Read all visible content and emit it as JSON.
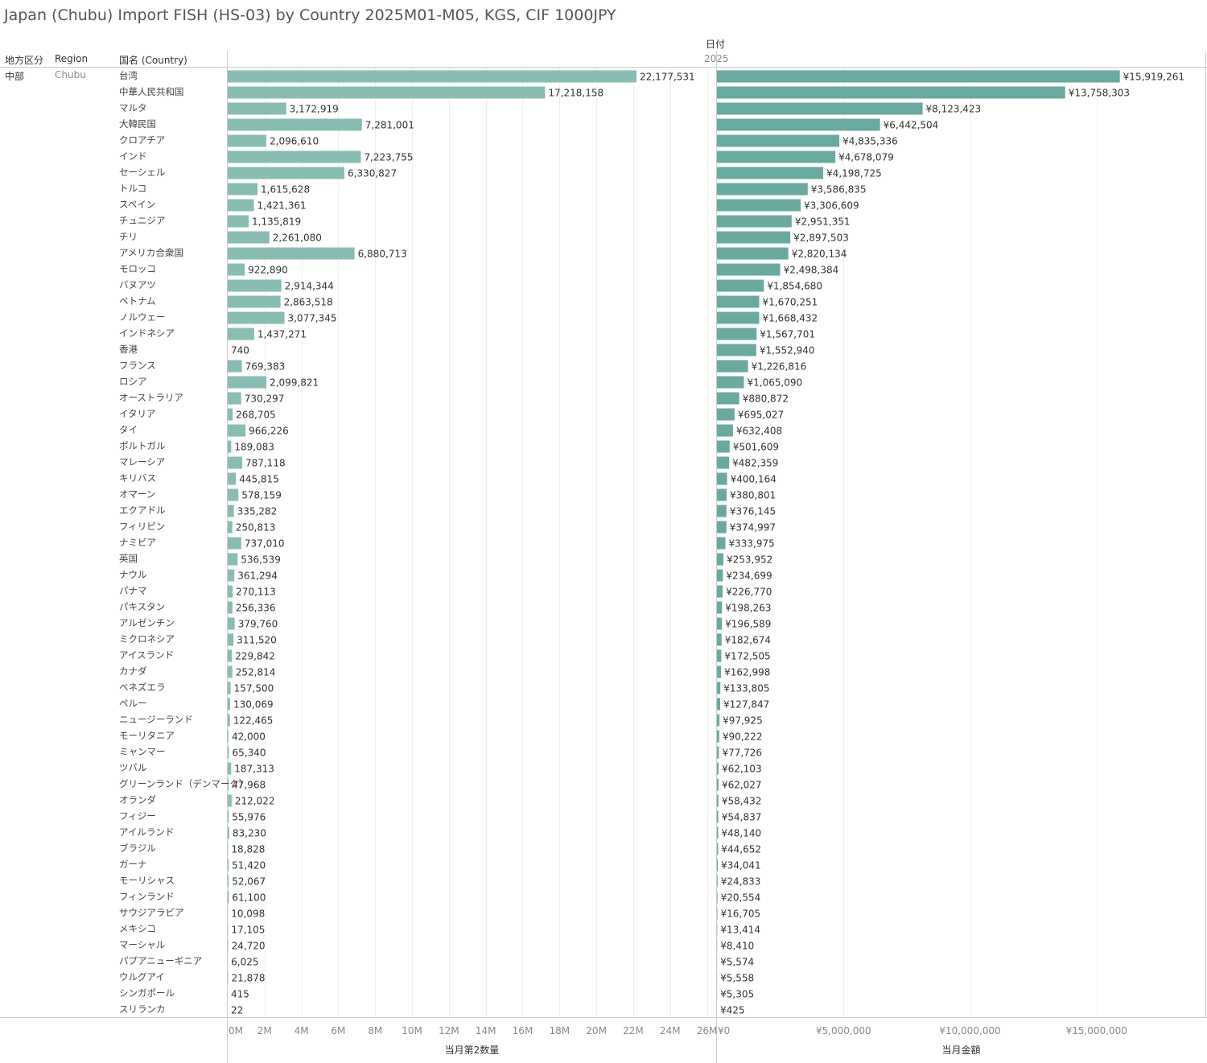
{
  "title": "Japan (Chubu) Import FISH (HS-03) by Country 2025M01-M05, KGS, CIF 1000JPY",
  "headers": {
    "col1": "地方区分",
    "col2": "Region",
    "col3": "国名 (Country)",
    "date_header": "日付",
    "date_value": "2025"
  },
  "region": {
    "jp": "中部",
    "en": "Chubu"
  },
  "colors": {
    "qty_bar": "#89bdb3",
    "val_bar": "#6aa9a0",
    "grid": "#eeeeee",
    "axis": "#cccccc"
  },
  "chart_data": {
    "type": "bar",
    "orientation": "horizontal",
    "categories": [
      "台湾",
      "中華人民共和国",
      "マルタ",
      "大韓民国",
      "クロアチア",
      "インド",
      "セーシェル",
      "トルコ",
      "スペイン",
      "チュニジア",
      "チリ",
      "アメリカ合衆国",
      "モロッコ",
      "バヌアツ",
      "ベトナム",
      "ノルウェー",
      "インドネシア",
      "香港",
      "フランス",
      "ロシア",
      "オーストラリア",
      "イタリア",
      "タイ",
      "ポルトガル",
      "マレーシア",
      "キリバス",
      "オマーン",
      "エクアドル",
      "フィリピン",
      "ナミビア",
      "英国",
      "ナウル",
      "パナマ",
      "パキスタン",
      "アルゼンチン",
      "ミクロネシア",
      "アイスランド",
      "カナダ",
      "ベネズエラ",
      "ペルー",
      "ニュージーランド",
      "モーリタニア",
      "ミャンマー",
      "ツバル",
      "グリーンランド（デンマーク）",
      "オランダ",
      "フィジー",
      "アイルランド",
      "ブラジル",
      "ガーナ",
      "モーリシャス",
      "フィンランド",
      "サウジアラビア",
      "メキシコ",
      "マーシャル",
      "パプアニューギニア",
      "ウルグアイ",
      "シンガポール",
      "スリランカ"
    ],
    "series": [
      {
        "name": "当月第2数量",
        "values": [
          22177531,
          17218158,
          3172919,
          7281001,
          2096610,
          7223755,
          6330827,
          1615628,
          1421361,
          1135819,
          2261080,
          6880713,
          922890,
          2914344,
          2863518,
          3077345,
          1437271,
          740,
          769383,
          2099821,
          730297,
          268705,
          966226,
          189083,
          787118,
          445815,
          578159,
          335282,
          250813,
          737010,
          536539,
          361294,
          270113,
          256336,
          379760,
          311520,
          229842,
          252814,
          157500,
          130069,
          122465,
          42000,
          65340,
          187313,
          47968,
          212022,
          55976,
          83230,
          18828,
          51420,
          52067,
          61100,
          10098,
          17105,
          24720,
          6025,
          21878,
          415,
          22
        ],
        "labels": [
          "22,177,531",
          "17,218,158",
          "3,172,919",
          "7,281,001",
          "2,096,610",
          "7,223,755",
          "6,330,827",
          "1,615,628",
          "1,421,361",
          "1,135,819",
          "2,261,080",
          "6,880,713",
          "922,890",
          "2,914,344",
          "2,863,518",
          "3,077,345",
          "1,437,271",
          "740",
          "769,383",
          "2,099,821",
          "730,297",
          "268,705",
          "966,226",
          "189,083",
          "787,118",
          "445,815",
          "578,159",
          "335,282",
          "250,813",
          "737,010",
          "536,539",
          "361,294",
          "270,113",
          "256,336",
          "379,760",
          "311,520",
          "229,842",
          "252,814",
          "157,500",
          "130,069",
          "122,465",
          "42,000",
          "65,340",
          "187,313",
          "47,968",
          "212,022",
          "55,976",
          "83,230",
          "18,828",
          "51,420",
          "52,067",
          "61,100",
          "10,098",
          "17,105",
          "24,720",
          "6,025",
          "21,878",
          "415",
          "22"
        ],
        "xlim": [
          0,
          26500000
        ],
        "ticks": [
          0,
          2000000,
          4000000,
          6000000,
          8000000,
          10000000,
          12000000,
          14000000,
          16000000,
          18000000,
          20000000,
          22000000,
          24000000,
          26000000
        ],
        "tick_labels": [
          "0M",
          "2M",
          "4M",
          "6M",
          "8M",
          "10M",
          "12M",
          "14M",
          "16M",
          "18M",
          "20M",
          "22M",
          "24M",
          "26M"
        ],
        "xlabel": "当月第2数量"
      },
      {
        "name": "当月金額",
        "values": [
          15919261,
          13758303,
          8123423,
          6442504,
          4835336,
          4678079,
          4198725,
          3586835,
          3306609,
          2951351,
          2897503,
          2820134,
          2498384,
          1854680,
          1670251,
          1668432,
          1567701,
          1552940,
          1226816,
          1065090,
          880872,
          695027,
          632408,
          501609,
          482359,
          400164,
          380801,
          376145,
          374997,
          333975,
          253952,
          234699,
          226770,
          198263,
          196589,
          182674,
          172505,
          162998,
          133805,
          127847,
          97925,
          90222,
          77726,
          62103,
          62027,
          58432,
          54837,
          48140,
          44652,
          34041,
          24833,
          20554,
          16705,
          13414,
          8410,
          5574,
          5558,
          5305,
          425
        ],
        "labels": [
          "¥15,919,261",
          "¥13,758,303",
          "¥8,123,423",
          "¥6,442,504",
          "¥4,835,336",
          "¥4,678,079",
          "¥4,198,725",
          "¥3,586,835",
          "¥3,306,609",
          "¥2,951,351",
          "¥2,897,503",
          "¥2,820,134",
          "¥2,498,384",
          "¥1,854,680",
          "¥1,670,251",
          "¥1,668,432",
          "¥1,567,701",
          "¥1,552,940",
          "¥1,226,816",
          "¥1,065,090",
          "¥880,872",
          "¥695,027",
          "¥632,408",
          "¥501,609",
          "¥482,359",
          "¥400,164",
          "¥380,801",
          "¥376,145",
          "¥374,997",
          "¥333,975",
          "¥253,952",
          "¥234,699",
          "¥226,770",
          "¥198,263",
          "¥196,589",
          "¥182,674",
          "¥172,505",
          "¥162,998",
          "¥133,805",
          "¥127,847",
          "¥97,925",
          "¥90,222",
          "¥77,726",
          "¥62,103",
          "¥62,027",
          "¥58,432",
          "¥54,837",
          "¥48,140",
          "¥44,652",
          "¥34,041",
          "¥24,833",
          "¥20,554",
          "¥16,705",
          "¥13,414",
          "¥8,410",
          "¥5,574",
          "¥5,558",
          "¥5,305",
          "¥425"
        ],
        "xlim": [
          0,
          19300000
        ],
        "ticks": [
          0,
          5000000,
          10000000,
          15000000
        ],
        "tick_labels": [
          "¥0",
          "¥5,000,000",
          "¥10,000,000",
          "¥15,000,000"
        ],
        "xlabel": "当月金額"
      }
    ],
    "grid": true
  }
}
